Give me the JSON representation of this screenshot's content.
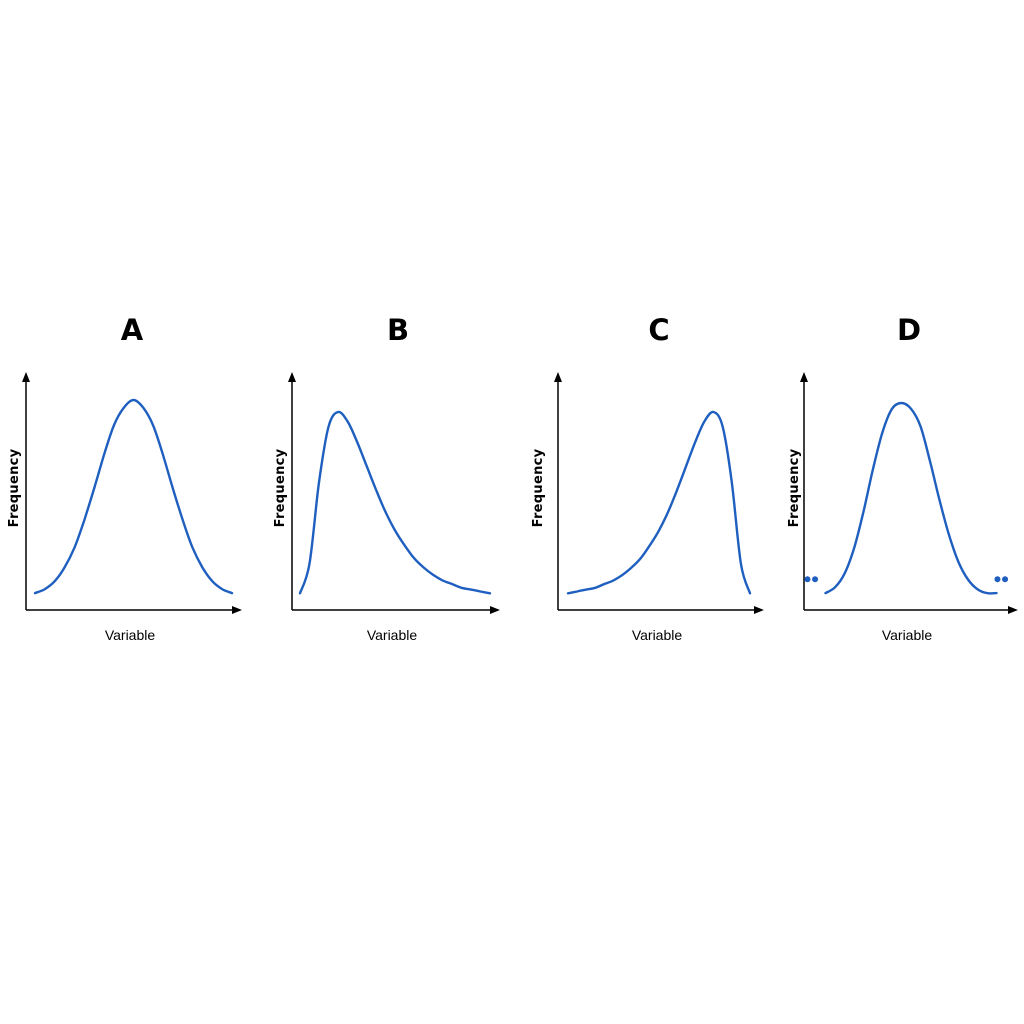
{
  "colors": {
    "curve": "#1f5fbf",
    "axis": "#000000",
    "text": "#000000",
    "background": "#ffffff"
  },
  "chart_data": [
    {
      "type": "line",
      "title": "A",
      "xlabel": "Variable",
      "ylabel": "Frequency",
      "shape": "symmetric-normal",
      "x_ticks": false,
      "y_ticks": false,
      "grid": false,
      "xlim": [
        0,
        10
      ],
      "ylim": [
        0,
        1
      ],
      "series": [
        {
          "x": [
            0,
            0.5,
            1,
            1.5,
            2,
            2.5,
            3,
            3.5,
            4,
            4.5,
            5,
            5.5,
            6,
            6.5,
            7,
            7.5,
            8,
            8.5,
            9,
            9.5,
            10
          ],
          "y": [
            0.02,
            0.04,
            0.08,
            0.15,
            0.25,
            0.39,
            0.55,
            0.72,
            0.87,
            0.96,
            1.0,
            0.96,
            0.87,
            0.72,
            0.55,
            0.39,
            0.25,
            0.15,
            0.08,
            0.04,
            0.02
          ]
        }
      ]
    },
    {
      "type": "line",
      "title": "B",
      "xlabel": "Variable",
      "ylabel": "Frequency",
      "shape": "right-skewed",
      "x_ticks": false,
      "y_ticks": false,
      "grid": false,
      "xlim": [
        0,
        10
      ],
      "ylim": [
        0,
        1
      ],
      "series": [
        {
          "x": [
            0,
            0.5,
            1,
            1.5,
            2,
            2.5,
            3,
            3.5,
            4,
            4.5,
            5,
            5.5,
            6,
            6.5,
            7,
            7.5,
            8,
            8.5,
            9,
            9.5,
            10
          ],
          "y": [
            0.02,
            0.18,
            0.62,
            0.92,
            1.0,
            0.95,
            0.84,
            0.71,
            0.58,
            0.46,
            0.36,
            0.28,
            0.21,
            0.16,
            0.12,
            0.09,
            0.07,
            0.05,
            0.04,
            0.03,
            0.02
          ]
        }
      ]
    },
    {
      "type": "line",
      "title": "C",
      "xlabel": "Variable",
      "ylabel": "Frequency",
      "shape": "left-skewed",
      "x_ticks": false,
      "y_ticks": false,
      "grid": false,
      "xlim": [
        0,
        10
      ],
      "ylim": [
        0,
        1
      ],
      "series": [
        {
          "x": [
            0,
            0.5,
            1,
            1.5,
            2,
            2.5,
            3,
            3.5,
            4,
            4.5,
            5,
            5.5,
            6,
            6.5,
            7,
            7.5,
            8,
            8.5,
            9,
            9.5,
            10
          ],
          "y": [
            0.02,
            0.03,
            0.04,
            0.05,
            0.07,
            0.09,
            0.12,
            0.16,
            0.21,
            0.28,
            0.36,
            0.46,
            0.58,
            0.71,
            0.84,
            0.95,
            1.0,
            0.92,
            0.62,
            0.18,
            0.02
          ]
        }
      ]
    },
    {
      "type": "line",
      "title": "D",
      "xlabel": "Variable",
      "ylabel": "Frequency",
      "shape": "narrow-normal-with-outliers",
      "x_ticks": false,
      "y_ticks": false,
      "grid": false,
      "xlim": [
        0,
        10
      ],
      "ylim": [
        0,
        1
      ],
      "series": [
        {
          "x": [
            0.5,
            1,
            1.5,
            2,
            2.5,
            3,
            3.5,
            4,
            4.5,
            5,
            5.5,
            6,
            6.5,
            7,
            7.5,
            8,
            8.5,
            9,
            9.5
          ],
          "y": [
            0.02,
            0.05,
            0.12,
            0.25,
            0.44,
            0.66,
            0.85,
            0.97,
            1.0,
            0.97,
            0.88,
            0.7,
            0.5,
            0.32,
            0.18,
            0.09,
            0.04,
            0.02,
            0.02
          ]
        }
      ],
      "outliers": [
        {
          "x": -0.45,
          "y": 0.05
        },
        {
          "x": -0.05,
          "y": 0.05
        },
        {
          "x": 9.55,
          "y": 0.05
        },
        {
          "x": 9.95,
          "y": 0.05
        }
      ]
    }
  ]
}
